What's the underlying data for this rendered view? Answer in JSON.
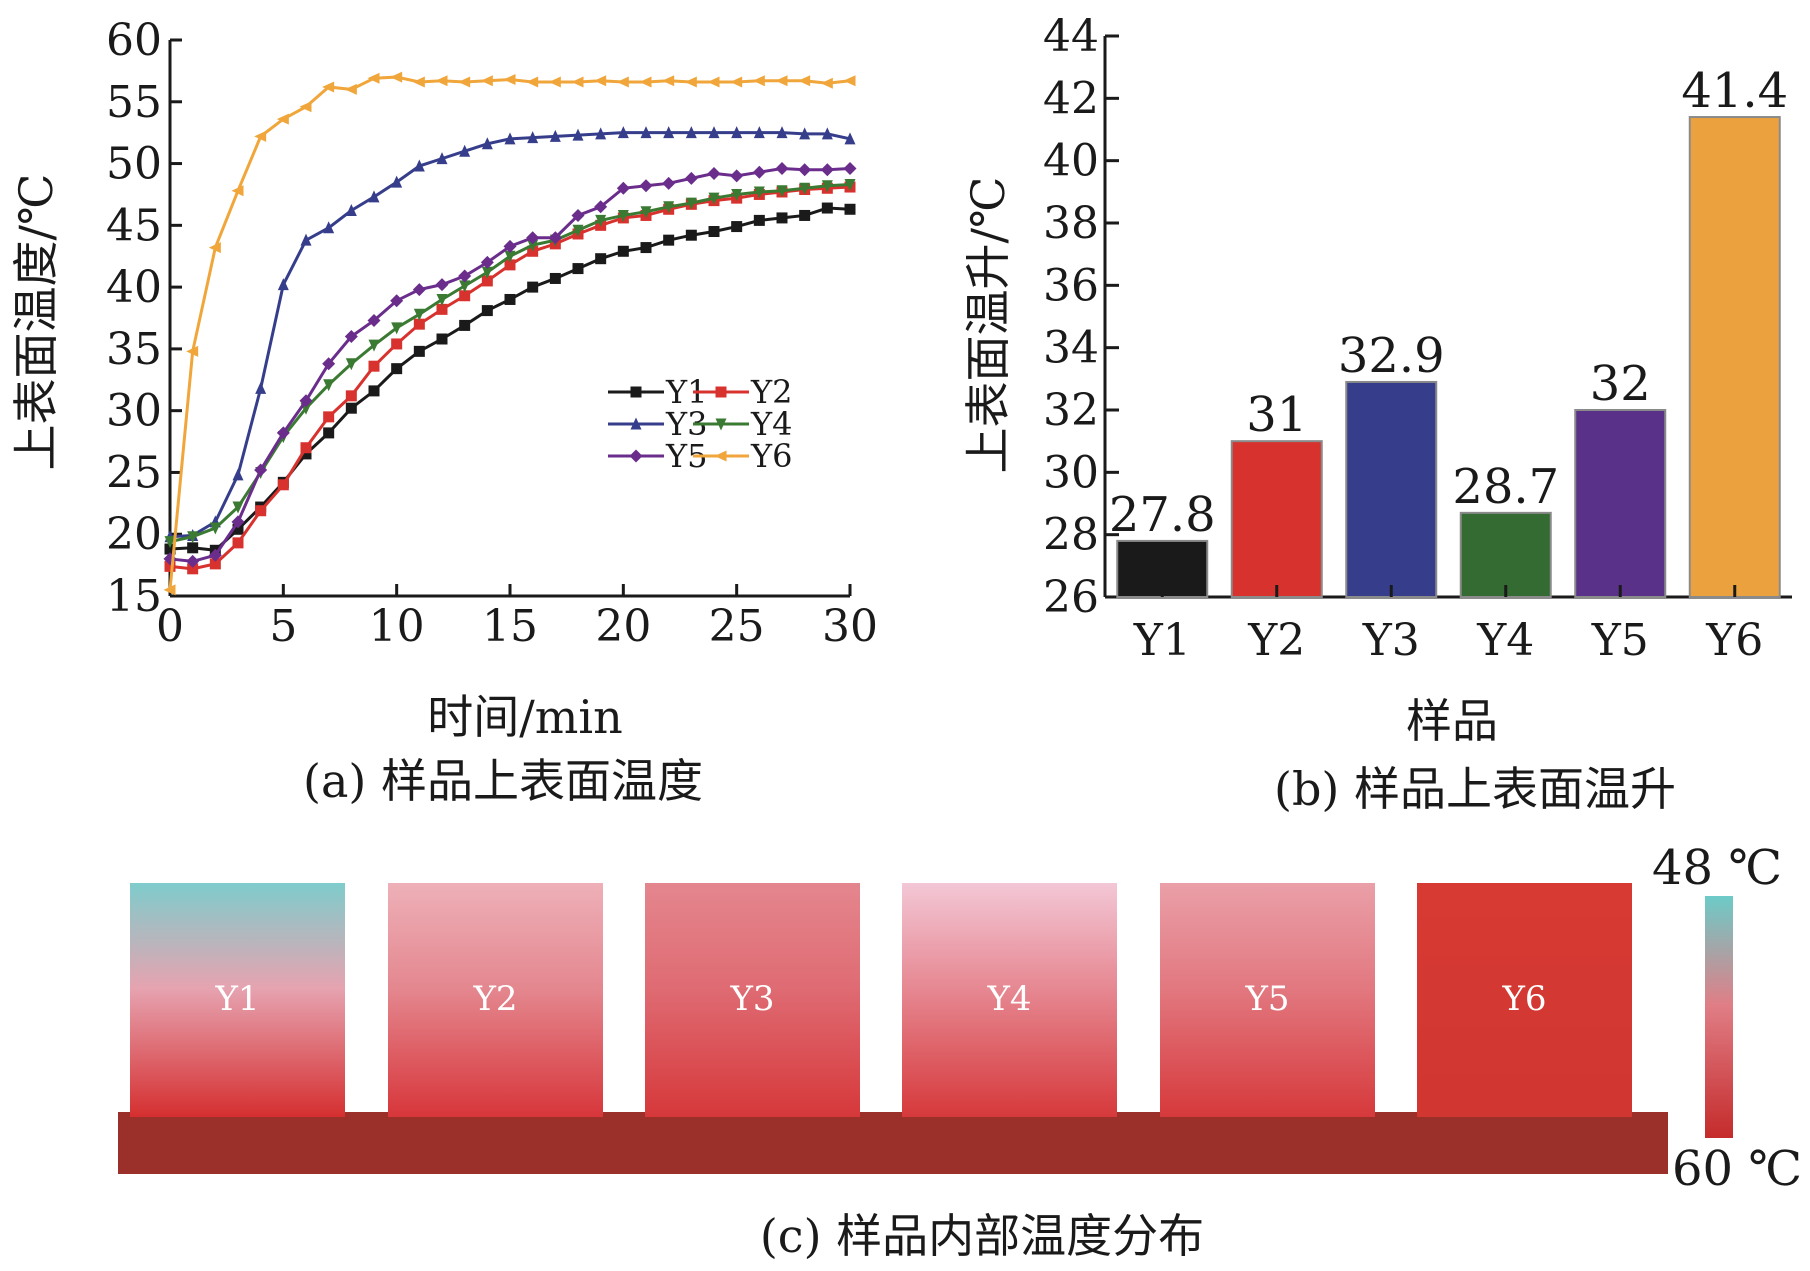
{
  "chart_data": [
    {
      "panel": "a",
      "type": "line",
      "caption": "(a) 样品上表面温度",
      "xlabel": "时间/min",
      "ylabel": "上表面温度/℃",
      "xlim": [
        0,
        30
      ],
      "ylim": [
        15,
        60
      ],
      "xticks": [
        0,
        5,
        10,
        15,
        20,
        25,
        30
      ],
      "yticks": [
        15,
        20,
        25,
        30,
        35,
        40,
        45,
        50,
        55,
        60
      ],
      "grid": false,
      "legend_position": "center-right",
      "x": [
        0,
        1,
        2,
        3,
        4,
        5,
        6,
        7,
        8,
        9,
        10,
        11,
        12,
        13,
        14,
        15,
        16,
        17,
        18,
        19,
        20,
        21,
        22,
        23,
        24,
        25,
        26,
        27,
        28,
        29,
        30
      ],
      "series": [
        {
          "name": "Y1",
          "color": "#1a1a1a",
          "marker": "square",
          "values": [
            18.8,
            18.9,
            18.7,
            20.4,
            22.2,
            24.2,
            26.5,
            28.2,
            30.2,
            31.6,
            33.4,
            34.8,
            35.8,
            36.9,
            38.1,
            39.0,
            40.0,
            40.7,
            41.5,
            42.3,
            42.9,
            43.2,
            43.8,
            44.2,
            44.5,
            44.9,
            45.4,
            45.6,
            45.8,
            46.4,
            46.3
          ]
        },
        {
          "name": "Y2",
          "color": "#d8322e",
          "marker": "square",
          "values": [
            17.4,
            17.2,
            17.6,
            19.3,
            21.9,
            24.0,
            27.0,
            29.5,
            31.2,
            33.6,
            35.4,
            37.0,
            38.2,
            39.3,
            40.5,
            41.8,
            42.9,
            43.5,
            44.3,
            45.0,
            45.6,
            45.8,
            46.3,
            46.7,
            47.0,
            47.2,
            47.5,
            47.7,
            47.9,
            48.0,
            48.1
          ]
        },
        {
          "name": "Y3",
          "color": "#363e8c",
          "marker": "triangle-up",
          "values": [
            19.8,
            19.9,
            21.0,
            24.8,
            31.8,
            40.2,
            43.8,
            44.8,
            46.2,
            47.3,
            48.5,
            49.8,
            50.4,
            51.0,
            51.6,
            52.0,
            52.1,
            52.2,
            52.3,
            52.4,
            52.5,
            52.5,
            52.5,
            52.5,
            52.5,
            52.5,
            52.5,
            52.5,
            52.4,
            52.4,
            52.0
          ]
        },
        {
          "name": "Y4",
          "color": "#3a7a32",
          "marker": "triangle-down",
          "values": [
            19.4,
            19.8,
            20.5,
            22.2,
            25.0,
            27.9,
            30.2,
            32.1,
            33.8,
            35.3,
            36.7,
            37.8,
            39.0,
            40.1,
            41.2,
            42.5,
            43.4,
            43.8,
            44.6,
            45.4,
            45.8,
            46.1,
            46.5,
            46.8,
            47.2,
            47.5,
            47.7,
            47.8,
            48.0,
            48.2,
            48.3
          ]
        },
        {
          "name": "Y5",
          "color": "#6b2d8c",
          "marker": "diamond",
          "values": [
            18.0,
            17.8,
            18.3,
            21.0,
            25.2,
            28.2,
            30.8,
            33.8,
            36.0,
            37.3,
            38.9,
            39.8,
            40.2,
            40.9,
            42.0,
            43.3,
            44.0,
            44.0,
            45.8,
            46.5,
            48.0,
            48.2,
            48.4,
            48.8,
            49.2,
            49.0,
            49.3,
            49.6,
            49.5,
            49.5,
            49.6
          ]
        },
        {
          "name": "Y6",
          "color": "#f0a63a",
          "marker": "triangle-left",
          "values": [
            15.5,
            34.8,
            43.2,
            47.8,
            52.2,
            53.6,
            54.6,
            56.2,
            56.0,
            56.9,
            57.0,
            56.6,
            56.7,
            56.6,
            56.7,
            56.8,
            56.6,
            56.6,
            56.6,
            56.7,
            56.6,
            56.6,
            56.7,
            56.6,
            56.6,
            56.6,
            56.7,
            56.7,
            56.7,
            56.5,
            56.7
          ]
        }
      ]
    },
    {
      "panel": "b",
      "type": "bar",
      "caption": "(b) 样品上表面温升",
      "xlabel": "样品",
      "ylabel": "上表面温升/℃",
      "ylim": [
        26,
        44
      ],
      "yticks": [
        26,
        28,
        30,
        32,
        34,
        36,
        38,
        40,
        42,
        44
      ],
      "grid": false,
      "categories": [
        "Y1",
        "Y2",
        "Y3",
        "Y4",
        "Y5",
        "Y6"
      ],
      "values": [
        27.8,
        31,
        32.9,
        28.7,
        32,
        41.4
      ],
      "value_labels": [
        "27.8",
        "31",
        "32.9",
        "28.7",
        "32",
        "41.4"
      ],
      "colors": [
        "#1a1a1a",
        "#d8322e",
        "#363e8c",
        "#346b33",
        "#5a3189",
        "#eba23e"
      ]
    }
  ],
  "panel_c": {
    "caption": "(c) 样品内部温度分布",
    "blocks": [
      {
        "label": "Y1",
        "top_color": "#7fcccc",
        "mid_color": "#e6a3b0",
        "bottom_color": "#d52f30"
      },
      {
        "label": "Y2",
        "top_color": "#eeb0b8",
        "mid_color": "#e4878f",
        "bottom_color": "#d7363a"
      },
      {
        "label": "Y3",
        "top_color": "#e4868e",
        "mid_color": "#df6b73",
        "bottom_color": "#d6383a"
      },
      {
        "label": "Y4",
        "top_color": "#f3c7d6",
        "mid_color": "#e68892",
        "bottom_color": "#d6393b"
      },
      {
        "label": "Y5",
        "top_color": "#ea9fa8",
        "mid_color": "#e27880",
        "bottom_color": "#d6393b"
      },
      {
        "label": "Y6",
        "top_color": "#d73a33",
        "mid_color": "#d43832",
        "bottom_color": "#d23630"
      }
    ],
    "base_color": "#9b302b",
    "scale_top_label": "48 ℃",
    "scale_bottom_label": "60 ℃",
    "scale_top_color": "#6ccbc8",
    "scale_mid_color": "#e07e86",
    "scale_bottom_color": "#c52b2b"
  }
}
